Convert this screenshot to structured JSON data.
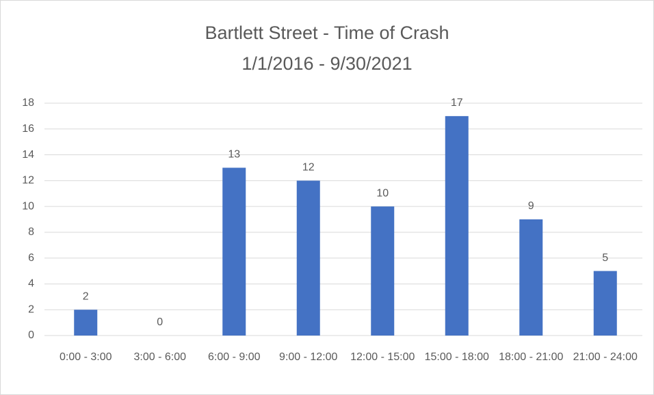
{
  "chart_data": {
    "type": "bar",
    "title": "Bartlett Street - Time of Crash",
    "subtitle": "1/1/2016 - 9/30/2021",
    "categories": [
      "0:00 - 3:00",
      "3:00 - 6:00",
      "6:00 - 9:00",
      "9:00 - 12:00",
      "12:00 - 15:00",
      "15:00 - 18:00",
      "18:00 - 21:00",
      "21:00 - 24:00"
    ],
    "values": [
      2,
      0,
      13,
      12,
      10,
      17,
      9,
      5
    ],
    "color": "#4472c4",
    "ylim": [
      0,
      18
    ],
    "yticks": [
      0,
      2,
      4,
      6,
      8,
      10,
      12,
      14,
      16,
      18
    ],
    "grid": true
  }
}
